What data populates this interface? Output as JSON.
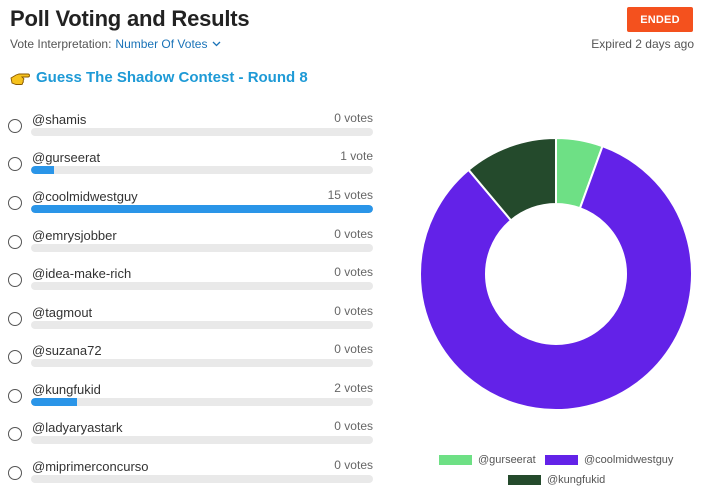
{
  "header": {
    "title": "Poll Voting and Results",
    "status_label": "ENDED",
    "interpretation_label": "Vote Interpretation:",
    "interpretation_value": "Number Of Votes",
    "expired_text": "Expired 2 days ago"
  },
  "poll": {
    "title": "Guess The Shadow Contest - Round 8",
    "options": [
      {
        "name": "@shamis",
        "votes_label": "0 votes",
        "votes": 0
      },
      {
        "name": "@gurseerat",
        "votes_label": "1 vote",
        "votes": 1
      },
      {
        "name": "@coolmidwestguy",
        "votes_label": "15 votes",
        "votes": 15
      },
      {
        "name": "@emrysjobber",
        "votes_label": "0 votes",
        "votes": 0
      },
      {
        "name": "@idea-make-rich",
        "votes_label": "0 votes",
        "votes": 0
      },
      {
        "name": "@tagmout",
        "votes_label": "0 votes",
        "votes": 0
      },
      {
        "name": "@suzana72",
        "votes_label": "0 votes",
        "votes": 0
      },
      {
        "name": "@kungfukid",
        "votes_label": "2 votes",
        "votes": 2
      },
      {
        "name": "@ladyaryastark",
        "votes_label": "0 votes",
        "votes": 0
      },
      {
        "name": "@miprimerconcurso",
        "votes_label": "0 votes",
        "votes": 0
      }
    ],
    "max_votes": 15
  },
  "colors": {
    "accent": "#1e9ad6",
    "bar": "#2a95e8",
    "ended": "#f4511e"
  },
  "chart_data": {
    "type": "pie",
    "donut": true,
    "categories": [
      "@gurseerat",
      "@coolmidwestguy",
      "@kungfukid"
    ],
    "values": [
      1,
      15,
      2
    ],
    "colors": [
      "#6ee085",
      "#6322e8",
      "#244a2c"
    ],
    "legend_position": "bottom"
  }
}
